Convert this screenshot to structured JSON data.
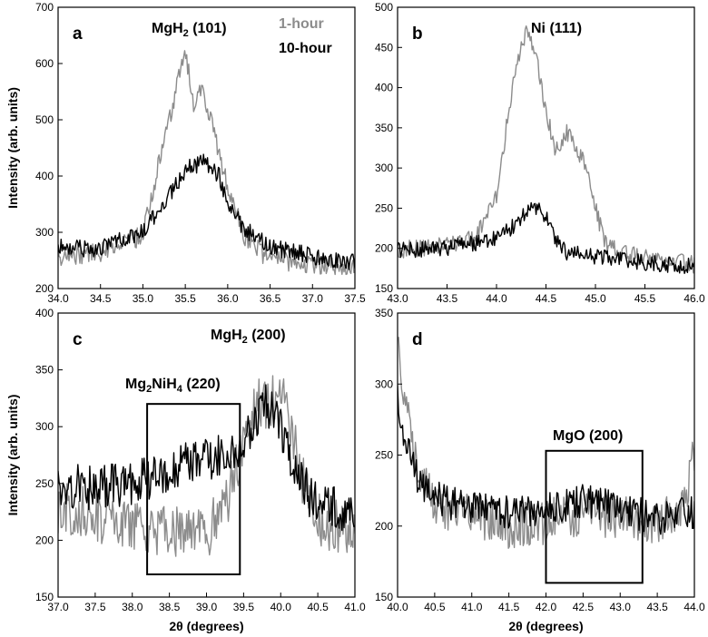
{
  "colors": {
    "hour1": "#8c8c8c",
    "hour10": "#000000",
    "frame": "#000000"
  },
  "chart_data": [
    {
      "type": "line",
      "panel": "a",
      "peak_label": {
        "base": "MgH",
        "sub": "2",
        "tail": " (101)"
      },
      "legend": [
        "1-hour",
        "10-hour"
      ],
      "xlim": [
        34.0,
        37.5
      ],
      "ylim": [
        200,
        700
      ],
      "xticks": [
        34.0,
        34.5,
        35.0,
        35.5,
        36.0,
        36.5,
        37.0,
        37.5
      ],
      "xtick_labels": [
        "34.0",
        "34.5",
        "35.0",
        "35.5",
        "36.0",
        "36.5",
        "37.0",
        "37.5"
      ],
      "yticks": [
        200,
        300,
        400,
        500,
        600,
        700
      ],
      "ytick_labels": [
        "200",
        "300",
        "400",
        "500",
        "600",
        "700"
      ],
      "ylabel": "Intensity (arb. units)",
      "xlabel": "",
      "series": [
        {
          "name": "1-hour",
          "color": "#8c8c8c",
          "x": [
            34.0,
            34.5,
            35.0,
            35.2,
            35.4,
            35.5,
            35.6,
            35.7,
            35.8,
            36.0,
            36.2,
            36.5,
            37.0,
            37.5
          ],
          "y": [
            258,
            265,
            295,
            430,
            560,
            625,
            520,
            555,
            500,
            380,
            290,
            250,
            245,
            238
          ]
        },
        {
          "name": "10-hour",
          "color": "#000000",
          "x": [
            34.0,
            34.5,
            35.0,
            35.3,
            35.5,
            35.7,
            35.9,
            36.0,
            36.2,
            36.5,
            37.0,
            37.5
          ],
          "y": [
            272,
            270,
            300,
            365,
            410,
            425,
            400,
            350,
            305,
            272,
            258,
            245
          ]
        }
      ]
    },
    {
      "type": "line",
      "panel": "b",
      "peak_label": {
        "base": "Ni (111)",
        "sub": "",
        "tail": ""
      },
      "xlim": [
        43.0,
        46.0
      ],
      "ylim": [
        150,
        500
      ],
      "xticks": [
        43.0,
        43.5,
        44.0,
        44.5,
        45.0,
        45.5,
        46.0
      ],
      "xtick_labels": [
        "43.0",
        "43.5",
        "44.0",
        "44.5",
        "45.0",
        "45.5",
        "46.0"
      ],
      "yticks": [
        150,
        200,
        250,
        300,
        350,
        400,
        450,
        500
      ],
      "ytick_labels": [
        "150",
        "200",
        "250",
        "300",
        "350",
        "400",
        "450",
        "500"
      ],
      "xlabel": "",
      "ylabel": "",
      "series": [
        {
          "name": "1-hour",
          "color": "#8c8c8c",
          "x": [
            43.0,
            43.5,
            43.8,
            44.0,
            44.1,
            44.2,
            44.3,
            44.4,
            44.5,
            44.6,
            44.7,
            44.8,
            44.9,
            45.0,
            45.1,
            45.3,
            45.5,
            46.0
          ],
          "y": [
            198,
            203,
            215,
            265,
            350,
            430,
            470,
            440,
            370,
            320,
            345,
            330,
            300,
            250,
            205,
            195,
            188,
            180
          ]
        },
        {
          "name": "10-hour",
          "color": "#000000",
          "x": [
            43.0,
            43.5,
            44.0,
            44.2,
            44.3,
            44.4,
            44.5,
            44.6,
            44.7,
            45.0,
            45.5,
            46.0
          ],
          "y": [
            198,
            200,
            212,
            230,
            245,
            250,
            240,
            210,
            195,
            190,
            182,
            178
          ]
        }
      ]
    },
    {
      "type": "line",
      "panel": "c",
      "peak_label": {
        "base": "MgH",
        "sub": "2",
        "tail": " (200)"
      },
      "box_label": {
        "p1": "Mg",
        "s1": "2",
        "p2": "NiH",
        "s2": "4",
        "p3": " (220)"
      },
      "box": {
        "x0": 38.2,
        "x1": 39.45,
        "y0": 170,
        "y1": 320
      },
      "xlim": [
        37.0,
        41.0
      ],
      "ylim": [
        150,
        400
      ],
      "xticks": [
        37.0,
        37.5,
        38.0,
        38.5,
        39.0,
        39.5,
        40.0,
        40.5,
        41.0
      ],
      "xtick_labels": [
        "37.0",
        "37.5",
        "38.0",
        "38.5",
        "39.0",
        "39.5",
        "40.0",
        "40.5",
        "41.0"
      ],
      "yticks": [
        150,
        200,
        250,
        300,
        350,
        400
      ],
      "ytick_labels": [
        "150",
        "200",
        "250",
        "300",
        "350",
        "400"
      ],
      "xlabel": "2θ (degrees)",
      "ylabel": "Intensity (arb. units)",
      "series": [
        {
          "name": "1-hour",
          "color": "#8c8c8c",
          "x": [
            37.0,
            37.5,
            38.0,
            38.3,
            38.6,
            38.9,
            39.2,
            39.4,
            39.6,
            39.8,
            40.0,
            40.2,
            40.4,
            40.6,
            41.0
          ],
          "y": [
            230,
            222,
            212,
            210,
            206,
            203,
            220,
            262,
            318,
            322,
            328,
            280,
            228,
            215,
            208
          ]
        },
        {
          "name": "10-hour",
          "color": "#000000",
          "x": [
            37.0,
            37.5,
            38.0,
            38.5,
            39.0,
            39.4,
            39.6,
            39.8,
            40.0,
            40.2,
            40.5,
            41.0
          ],
          "y": [
            248,
            246,
            250,
            262,
            272,
            282,
            300,
            318,
            300,
            255,
            232,
            222
          ]
        }
      ]
    },
    {
      "type": "line",
      "panel": "d",
      "peak_label": {
        "base": "MgO (200)",
        "sub": "",
        "tail": ""
      },
      "box": {
        "x0": 42.0,
        "x1": 43.3,
        "y0": 160,
        "y1": 253
      },
      "xlim": [
        40.0,
        44.0
      ],
      "ylim": [
        150,
        350
      ],
      "xticks": [
        40.0,
        40.5,
        41.0,
        41.5,
        42.0,
        42.5,
        43.0,
        43.5,
        44.0
      ],
      "xtick_labels": [
        "40.0",
        "40.5",
        "41.0",
        "41.5",
        "42.0",
        "42.5",
        "43.0",
        "43.5",
        "44.0"
      ],
      "yticks": [
        150,
        200,
        250,
        300,
        350
      ],
      "ytick_labels": [
        "150",
        "200",
        "250",
        "300",
        "350"
      ],
      "xlabel": "2θ (degrees)",
      "ylabel": "",
      "series": [
        {
          "name": "1-hour",
          "color": "#8c8c8c",
          "x": [
            40.0,
            40.05,
            40.15,
            40.3,
            40.5,
            40.8,
            41.0,
            41.5,
            42.0,
            42.5,
            43.0,
            43.5,
            43.8,
            43.9,
            44.0
          ],
          "y": [
            345,
            310,
            270,
            235,
            218,
            210,
            207,
            200,
            203,
            210,
            205,
            202,
            210,
            225,
            255
          ]
        },
        {
          "name": "10-hour",
          "color": "#000000",
          "x": [
            40.0,
            40.05,
            40.15,
            40.3,
            40.5,
            40.8,
            41.0,
            41.5,
            42.0,
            42.5,
            43.0,
            43.5,
            44.0
          ],
          "y": [
            290,
            275,
            250,
            230,
            220,
            215,
            212,
            210,
            212,
            218,
            212,
            205,
            210
          ]
        }
      ]
    }
  ]
}
